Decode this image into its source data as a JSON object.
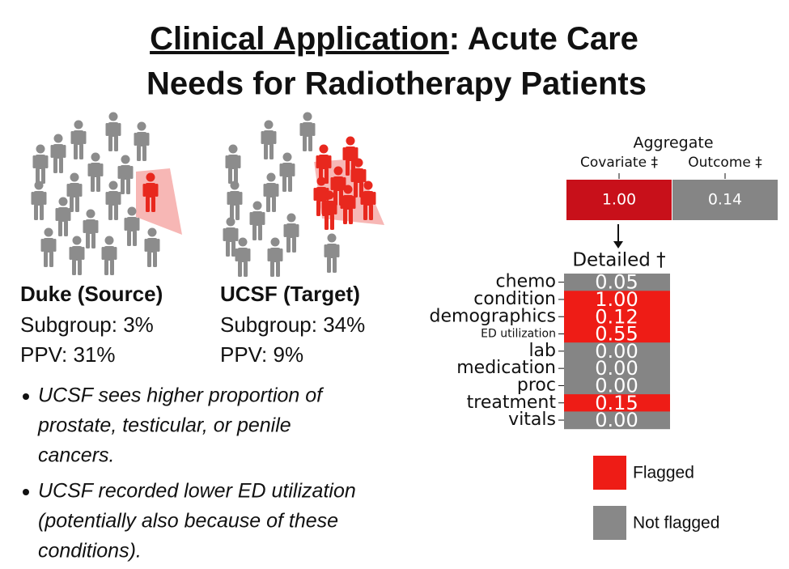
{
  "title": {
    "underlined": "Clinical Application",
    "rest_line1": ": Acute Care",
    "line2": "Needs for Radiotherapy Patients"
  },
  "sites": [
    {
      "name": "Duke (Source)",
      "lines": [
        "Subgroup: 3%",
        "PPV: 31%"
      ]
    },
    {
      "name": "UCSF (Target)",
      "lines": [
        "Subgroup: 34%",
        "PPV: 9%"
      ]
    }
  ],
  "bullets": [
    [
      "UCSF sees higher proportion of",
      "prostate, testicular, or penile",
      "cancers."
    ],
    [
      "UCSF recorded lower ED utilization",
      "(potentially also because of these",
      "conditions)."
    ]
  ],
  "aggregate": {
    "title": "Aggregate",
    "columns": [
      {
        "label": "Covariate ‡",
        "value": "1.00",
        "flagged": true
      },
      {
        "label": "Outcome ‡",
        "value": "0.14",
        "flagged": false
      }
    ]
  },
  "detailed": {
    "title": "Detailed †",
    "rows": [
      {
        "label": "chemo",
        "value": "0.05",
        "flagged": false
      },
      {
        "label": "condition",
        "value": "1.00",
        "flagged": true
      },
      {
        "label": "demographics",
        "value": "0.12",
        "flagged": true
      },
      {
        "label": "ED utilization",
        "value": "0.55",
        "flagged": true
      },
      {
        "label": "lab",
        "value": "0.00",
        "flagged": false
      },
      {
        "label": "medication",
        "value": "0.00",
        "flagged": false
      },
      {
        "label": "proc",
        "value": "0.00",
        "flagged": false
      },
      {
        "label": "treatment",
        "value": "0.15",
        "flagged": true
      },
      {
        "label": "vitals",
        "value": "0.00",
        "flagged": false
      }
    ]
  },
  "legend": [
    {
      "label": "Flagged",
      "color": "#ee1c16"
    },
    {
      "label": "Not flagged",
      "color": "#888888"
    }
  ],
  "colors": {
    "flagged": "#ee1c16",
    "aggregate_flagged": "#c8101a",
    "not_flagged": "#858585"
  }
}
